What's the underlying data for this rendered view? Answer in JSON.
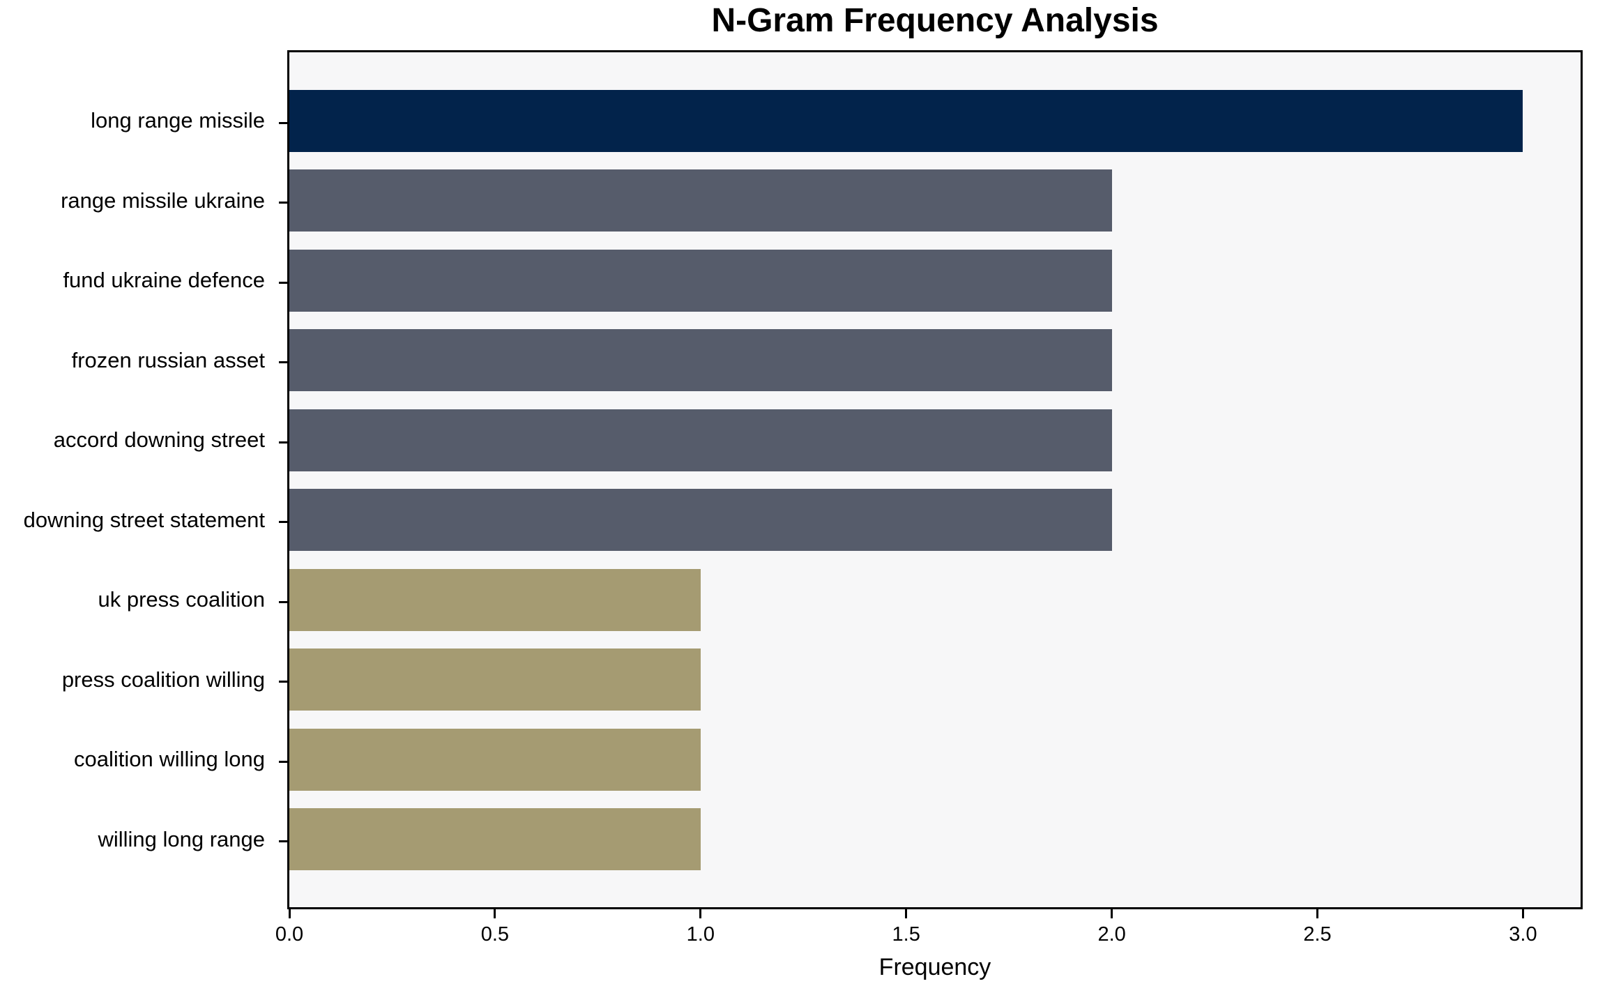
{
  "chart_data": {
    "type": "bar",
    "orientation": "horizontal",
    "title": "N-Gram Frequency Analysis",
    "xlabel": "Frequency",
    "ylabel": "",
    "categories": [
      "long range missile",
      "range missile ukraine",
      "fund ukraine defence",
      "frozen russian asset",
      "accord downing street",
      "downing street statement",
      "uk press coalition",
      "press coalition willing",
      "coalition willing long",
      "willing long range"
    ],
    "values": [
      3,
      2,
      2,
      2,
      2,
      2,
      1,
      1,
      1,
      1
    ],
    "bar_colors": [
      "#02234B",
      "#565C6B",
      "#565C6B",
      "#565C6B",
      "#565C6B",
      "#565C6B",
      "#A59B72",
      "#A59B72",
      "#A59B72",
      "#A59B72"
    ],
    "xlim": [
      0,
      3.14
    ],
    "xticks": [
      0.0,
      0.5,
      1.0,
      1.5,
      2.0,
      2.5,
      3.0
    ],
    "xtick_labels": [
      "0.0",
      "0.5",
      "1.0",
      "1.5",
      "2.0",
      "2.5",
      "3.0"
    ],
    "grid": false,
    "legend": null,
    "colors": {
      "plot_background": "#F7F7F8",
      "figure_background": "#FFFFFF",
      "spine": "#000000",
      "text": "#000000"
    }
  }
}
